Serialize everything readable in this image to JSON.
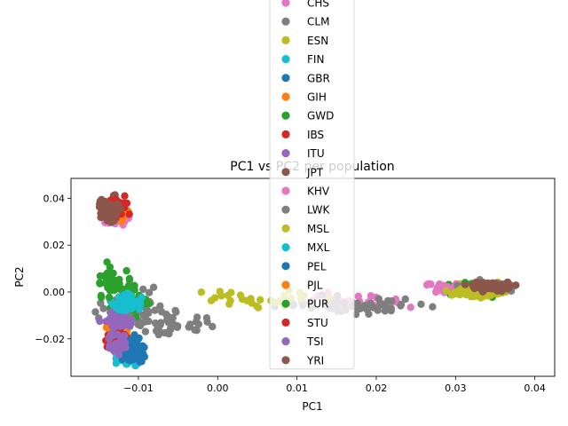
{
  "chart_data": {
    "type": "scatter",
    "title": "PC1 vs PC2 per population",
    "xlabel": "PC1",
    "ylabel": "PC2",
    "xlim": [
      -0.0185,
      0.0425
    ],
    "ylim": [
      -0.036,
      0.0485
    ],
    "xticks": [
      -0.01,
      0.0,
      0.01,
      0.02,
      0.03,
      0.04
    ],
    "xtick_labels": [
      "−0.01",
      "0.00",
      "0.01",
      "0.02",
      "0.03",
      "0.04"
    ],
    "yticks": [
      -0.02,
      0.0,
      0.02,
      0.04
    ],
    "ytick_labels": [
      "−0.02",
      "0.00",
      "0.02",
      "0.04"
    ],
    "grid": false,
    "legend_position": "upper-center (overlapping title)",
    "series": [
      {
        "name": "CHS",
        "color": "#e377c2",
        "clusters": [
          [
            -0.0132,
            0.0335,
            0.0012,
            0.0035,
            80
          ]
        ]
      },
      {
        "name": "CLM",
        "color": "#7f7f7f",
        "clusters": [
          [
            -0.0105,
            -0.008,
            0.004,
            0.008,
            70
          ],
          [
            -0.005,
            -0.014,
            0.004,
            0.004,
            30
          ]
        ]
      },
      {
        "name": "ESN",
        "color": "#bcbd22",
        "clusters": [
          [
            0.032,
            0.001,
            0.0035,
            0.0022,
            90
          ]
        ]
      },
      {
        "name": "FIN",
        "color": "#17becf",
        "clusters": [
          [
            -0.0115,
            -0.027,
            0.0012,
            0.003,
            70
          ]
        ]
      },
      {
        "name": "GBR",
        "color": "#1f77b4",
        "clusters": [
          [
            -0.011,
            -0.025,
            0.0013,
            0.0035,
            70
          ]
        ]
      },
      {
        "name": "GIH",
        "color": "#ff7f0e",
        "clusters": [
          [
            -0.0125,
            -0.016,
            0.0015,
            0.004,
            40
          ]
        ]
      },
      {
        "name": "GWD",
        "color": "#2ca02c",
        "clusters": [
          [
            0.032,
            0.0015,
            0.003,
            0.002,
            60
          ],
          [
            -0.011,
            -0.004,
            0.002,
            0.007,
            30
          ]
        ]
      },
      {
        "name": "IBS",
        "color": "#d62728",
        "clusters": [
          [
            -0.0125,
            -0.02,
            0.001,
            0.004,
            50
          ]
        ]
      },
      {
        "name": "ITU",
        "color": "#9467bd",
        "clusters": [
          [
            -0.0125,
            -0.012,
            0.0015,
            0.004,
            40
          ]
        ]
      },
      {
        "name": "JPT",
        "color": "#8c564b",
        "clusters": [
          [
            -0.0133,
            0.036,
            0.001,
            0.0035,
            80
          ]
        ]
      },
      {
        "name": "KHV",
        "color": "#e377c2",
        "clusters": [
          [
            0.016,
            -0.004,
            0.006,
            0.003,
            40
          ],
          [
            0.029,
            0.002,
            0.002,
            0.002,
            20
          ]
        ]
      },
      {
        "name": "LWK",
        "color": "#7f7f7f",
        "clusters": [
          [
            0.034,
            0.002,
            0.0028,
            0.0018,
            80
          ],
          [
            0.018,
            -0.006,
            0.007,
            0.003,
            50
          ]
        ]
      },
      {
        "name": "MSL",
        "color": "#bcbd22",
        "clusters": [
          [
            0.033,
            0.0,
            0.004,
            0.002,
            60
          ],
          [
            0.005,
            -0.003,
            0.007,
            0.004,
            30
          ]
        ]
      },
      {
        "name": "MXL",
        "color": "#17becf",
        "clusters": [
          [
            -0.0115,
            -0.005,
            0.0013,
            0.003,
            90
          ]
        ]
      },
      {
        "name": "PEL",
        "color": "#1f77b4",
        "clusters": [
          [
            -0.0105,
            -0.024,
            0.001,
            0.003,
            80
          ]
        ]
      },
      {
        "name": "PJL",
        "color": "#ff7f0e",
        "clusters": [
          [
            -0.0128,
            0.0335,
            0.001,
            0.003,
            20
          ]
        ]
      },
      {
        "name": "PUR",
        "color": "#2ca02c",
        "clusters": [
          [
            -0.0135,
            0.005,
            0.0015,
            0.006,
            40
          ]
        ]
      },
      {
        "name": "STU",
        "color": "#d62728",
        "clusters": [
          [
            -0.0125,
            0.036,
            0.001,
            0.004,
            30
          ]
        ]
      },
      {
        "name": "TSI",
        "color": "#9467bd",
        "clusters": [
          [
            -0.0125,
            -0.022,
            0.0012,
            0.004,
            30
          ]
        ]
      },
      {
        "name": "YRI",
        "color": "#8c564b",
        "clusters": [
          [
            0.0345,
            0.0025,
            0.0028,
            0.0015,
            80
          ],
          [
            -0.0135,
            0.035,
            0.001,
            0.003,
            80
          ]
        ]
      }
    ]
  }
}
